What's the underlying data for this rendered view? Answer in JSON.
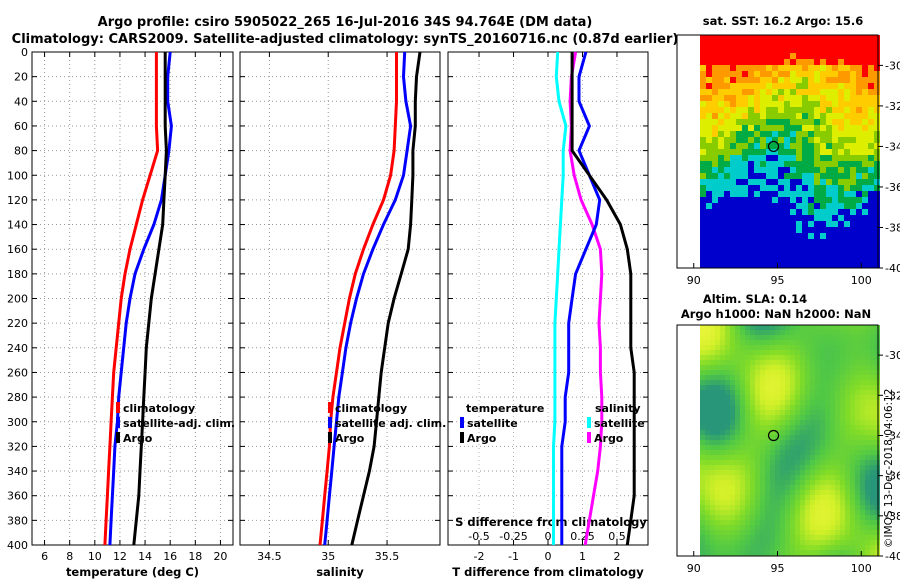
{
  "header": {
    "line1": "Argo profile: csiro 5905022_265 16-Jul-2016 34S 94.764E (DM data)",
    "line2": "Climatology: CARS2009. Satellite-adjusted climatology: synTS_20160716.nc (0.87d earlier)"
  },
  "credit": "©IMOS 13-Dec-2018 04:06:12",
  "colors": {
    "climatology": "#ff0000",
    "satellite_adj": "#0000ff",
    "argo": "#000000",
    "sat_temp": "#00ffff",
    "sat_sal": "#ff00ff",
    "grid": "#aaaaaa"
  },
  "chart_data": [
    {
      "type": "line",
      "id": "temperature",
      "xlabel": "temperature (deg C)",
      "ylabel": "",
      "xlim": [
        5,
        21
      ],
      "ylim": [
        400,
        0
      ],
      "xticks": [
        6,
        8,
        10,
        12,
        14,
        16,
        18,
        20
      ],
      "yticks": [
        0,
        20,
        40,
        60,
        80,
        100,
        120,
        140,
        160,
        180,
        200,
        220,
        240,
        260,
        280,
        300,
        320,
        340,
        360,
        380,
        400
      ],
      "depth": [
        0,
        20,
        40,
        60,
        80,
        100,
        120,
        140,
        160,
        180,
        200,
        220,
        240,
        260,
        280,
        300,
        320,
        340,
        360,
        380,
        400
      ],
      "series": [
        {
          "name": "climatology",
          "color": "#ff0000",
          "values": [
            14.9,
            14.9,
            14.9,
            14.9,
            15.0,
            14.4,
            13.8,
            13.3,
            12.8,
            12.4,
            12.1,
            11.9,
            11.7,
            11.5,
            11.4,
            11.3,
            11.2,
            11.1,
            11.0,
            10.9,
            10.8
          ]
        },
        {
          "name": "satellite-adj. clim.",
          "color": "#0000ff",
          "values": [
            16.0,
            15.8,
            15.8,
            16.1,
            15.9,
            15.6,
            15.3,
            14.7,
            13.9,
            13.2,
            12.8,
            12.5,
            12.3,
            12.1,
            11.9,
            11.8,
            11.6,
            11.5,
            11.4,
            11.3,
            11.2
          ]
        },
        {
          "name": "Argo",
          "color": "#000000",
          "values": [
            15.6,
            15.6,
            15.6,
            15.6,
            15.7,
            15.6,
            15.5,
            15.4,
            15.1,
            14.8,
            14.5,
            14.3,
            14.1,
            14.0,
            13.9,
            13.8,
            13.7,
            13.6,
            13.5,
            13.3,
            13.1
          ]
        }
      ],
      "legend": {
        "position": "bottom-right",
        "entries": [
          "climatology",
          "satellite-adj. clim.",
          "Argo"
        ]
      }
    },
    {
      "type": "line",
      "id": "salinity",
      "xlabel": "salinity",
      "ylabel": "",
      "xlim": [
        34.25,
        35.95
      ],
      "ylim": [
        400,
        0
      ],
      "xticks": [
        34.5,
        35,
        35.5
      ],
      "xticklabels": [
        "34.5",
        "35",
        "35.5"
      ],
      "yticks": [
        0,
        20,
        40,
        60,
        80,
        100,
        120,
        140,
        160,
        180,
        200,
        220,
        240,
        260,
        280,
        300,
        320,
        340,
        360,
        380,
        400
      ],
      "depth": [
        0,
        20,
        40,
        60,
        80,
        100,
        120,
        140,
        160,
        180,
        200,
        220,
        240,
        260,
        280,
        300,
        320,
        340,
        360,
        380,
        400
      ],
      "series": [
        {
          "name": "climatology",
          "color": "#ff0000",
          "values": [
            35.58,
            35.58,
            35.58,
            35.57,
            35.56,
            35.53,
            35.47,
            35.38,
            35.3,
            35.23,
            35.18,
            35.14,
            35.1,
            35.07,
            35.04,
            35.02,
            35.01,
            34.99,
            34.97,
            34.95,
            34.93
          ]
        },
        {
          "name": "satellite adj. clim.",
          "color": "#0000ff",
          "values": [
            35.65,
            35.64,
            35.66,
            35.7,
            35.67,
            35.64,
            35.57,
            35.47,
            35.38,
            35.3,
            35.24,
            35.19,
            35.15,
            35.12,
            35.09,
            35.07,
            35.05,
            35.03,
            35.01,
            34.99,
            34.97
          ]
        },
        {
          "name": "Argo",
          "color": "#000000",
          "values": [
            35.78,
            35.75,
            35.74,
            35.74,
            35.72,
            35.72,
            35.71,
            35.7,
            35.68,
            35.62,
            35.56,
            35.51,
            35.48,
            35.45,
            35.43,
            35.41,
            35.39,
            35.35,
            35.3,
            35.25,
            35.2
          ]
        }
      ],
      "legend": {
        "position": "bottom-right",
        "entries": [
          "climatology",
          "satellite adj. clim.",
          "Argo"
        ]
      }
    },
    {
      "type": "line",
      "id": "difference",
      "xlabel": "T difference from climatology",
      "xlabel2": "S difference from climatology",
      "xlim": [
        -2.9,
        2.9
      ],
      "ylim": [
        400,
        0
      ],
      "xticks": [
        -2,
        -1,
        0,
        1,
        2
      ],
      "xticks2": [
        -0.5,
        -0.25,
        0,
        0.25,
        0.5
      ],
      "xticklabels2": [
        "-0.5",
        "-0.25",
        "0",
        "0.25",
        "0.5"
      ],
      "yticks": [
        0,
        20,
        40,
        60,
        80,
        100,
        120,
        140,
        160,
        180,
        200,
        220,
        240,
        260,
        280,
        300,
        320,
        340,
        360,
        380,
        400
      ],
      "depth": [
        0,
        20,
        40,
        60,
        80,
        100,
        120,
        140,
        160,
        180,
        200,
        220,
        240,
        260,
        280,
        300,
        320,
        340,
        360,
        380,
        400
      ],
      "series": [
        {
          "name": "temperature satellite",
          "color": "#0000ff",
          "values": [
            1.1,
            0.9,
            0.9,
            1.2,
            0.9,
            1.2,
            1.5,
            1.4,
            1.1,
            0.8,
            0.7,
            0.6,
            0.6,
            0.6,
            0.5,
            0.5,
            0.4,
            0.4,
            0.4,
            0.4,
            0.4
          ]
        },
        {
          "name": "temperature Argo",
          "color": "#000000",
          "values": [
            0.7,
            0.7,
            0.7,
            0.7,
            0.7,
            1.2,
            1.7,
            2.1,
            2.3,
            2.4,
            2.4,
            2.4,
            2.4,
            2.5,
            2.5,
            2.5,
            2.5,
            2.5,
            2.5,
            2.4,
            2.3
          ]
        },
        {
          "name": "salinity satellite",
          "color": "#00ffff",
          "values": [
            0.07,
            0.06,
            0.08,
            0.13,
            0.11,
            0.11,
            0.1,
            0.09,
            0.08,
            0.07,
            0.06,
            0.05,
            0.05,
            0.05,
            0.05,
            0.05,
            0.04,
            0.04,
            0.04,
            0.04,
            0.04
          ]
        },
        {
          "name": "salinity Argo",
          "color": "#ff00ff",
          "values": [
            0.2,
            0.17,
            0.16,
            0.17,
            0.16,
            0.19,
            0.24,
            0.32,
            0.38,
            0.39,
            0.38,
            0.37,
            0.38,
            0.38,
            0.39,
            0.39,
            0.38,
            0.36,
            0.33,
            0.3,
            0.27
          ]
        }
      ],
      "legend_t": {
        "title": "temperature",
        "entries": [
          "satellite",
          "Argo"
        ]
      },
      "legend_s": {
        "title": "salinity",
        "entries": [
          "satellite",
          "Argo"
        ]
      }
    },
    {
      "type": "heatmap",
      "id": "sst_map",
      "title": "sat. SST: 16.2 Argo: 15.6",
      "xlim": [
        89,
        101
      ],
      "ylim": [
        -40,
        -28.5
      ],
      "xticks": [
        90,
        95,
        100
      ],
      "yticks": [
        -30,
        -32,
        -34,
        -36,
        -38,
        -40
      ],
      "marker": {
        "lon": 94.764,
        "lat": -34
      },
      "palette": [
        "#0000cc",
        "#00cccc",
        "#00aa44",
        "#88cc00",
        "#ddee00",
        "#ffcc00",
        "#ff9900",
        "#ff0000"
      ]
    },
    {
      "type": "heatmap",
      "id": "sla_map",
      "title": "Altim. SLA: 0.14",
      "subtitle": "Argo h1000: NaN h2000: NaN",
      "xlim": [
        89,
        101
      ],
      "ylim": [
        -40,
        -28.5
      ],
      "xticks": [
        90,
        95,
        100
      ],
      "yticks": [
        -30,
        -32,
        -34,
        -36,
        -38,
        -40
      ],
      "marker": {
        "lon": 94.764,
        "lat": -34
      }
    }
  ]
}
